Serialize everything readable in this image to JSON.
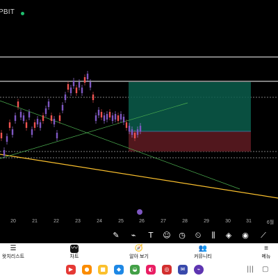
{
  "header": {
    "title": "PBIT"
  },
  "x_axis": {
    "labels": [
      "20",
      "21",
      "22",
      "23",
      "24",
      "25",
      "26",
      "27",
      "28",
      "29",
      "30",
      "31",
      "6월"
    ]
  },
  "toolbar": {
    "icons": [
      "pencil-icon",
      "brush-icon",
      "text-icon",
      "emoji-icon",
      "clock-icon",
      "stopwatch-icon",
      "candles-icon",
      "crosshair-icon",
      "layers-icon",
      "eye-icon",
      "indicator-icon"
    ]
  },
  "tabs": [
    {
      "id": "watchlist",
      "label": "왓치리스트",
      "icon": "list-icon"
    },
    {
      "id": "chart",
      "label": "차트",
      "icon": "chart-icon"
    },
    {
      "id": "explore",
      "label": "알아 보기",
      "icon": "compass-icon"
    },
    {
      "id": "community",
      "label": "커뮤니티",
      "icon": "people-icon"
    },
    {
      "id": "menu",
      "label": "메뉴",
      "icon": "menu-icon"
    }
  ],
  "dock": {
    "apps": [
      {
        "name": "app-red",
        "color": "#e53935"
      },
      {
        "name": "app-orange",
        "color": "#fb8c00"
      },
      {
        "name": "app-yellow",
        "color": "#fbc02d"
      },
      {
        "name": "app-blue",
        "color": "#1e88e5"
      },
      {
        "name": "app-green",
        "color": "#43a047"
      },
      {
        "name": "app-pink",
        "color": "#e91e63"
      },
      {
        "name": "app-red2",
        "color": "#d32f2f"
      },
      {
        "name": "app-indigo",
        "color": "#3949ab"
      },
      {
        "name": "app-violet",
        "color": "#5e35b1"
      }
    ]
  },
  "colors": {
    "up": "#26a69a",
    "down": "#ef5350",
    "candle_body": "#7e57c2",
    "trendline": "#fbc02d",
    "profit_zone": "#0b5d4b",
    "loss_zone": "#5a1a20"
  }
}
